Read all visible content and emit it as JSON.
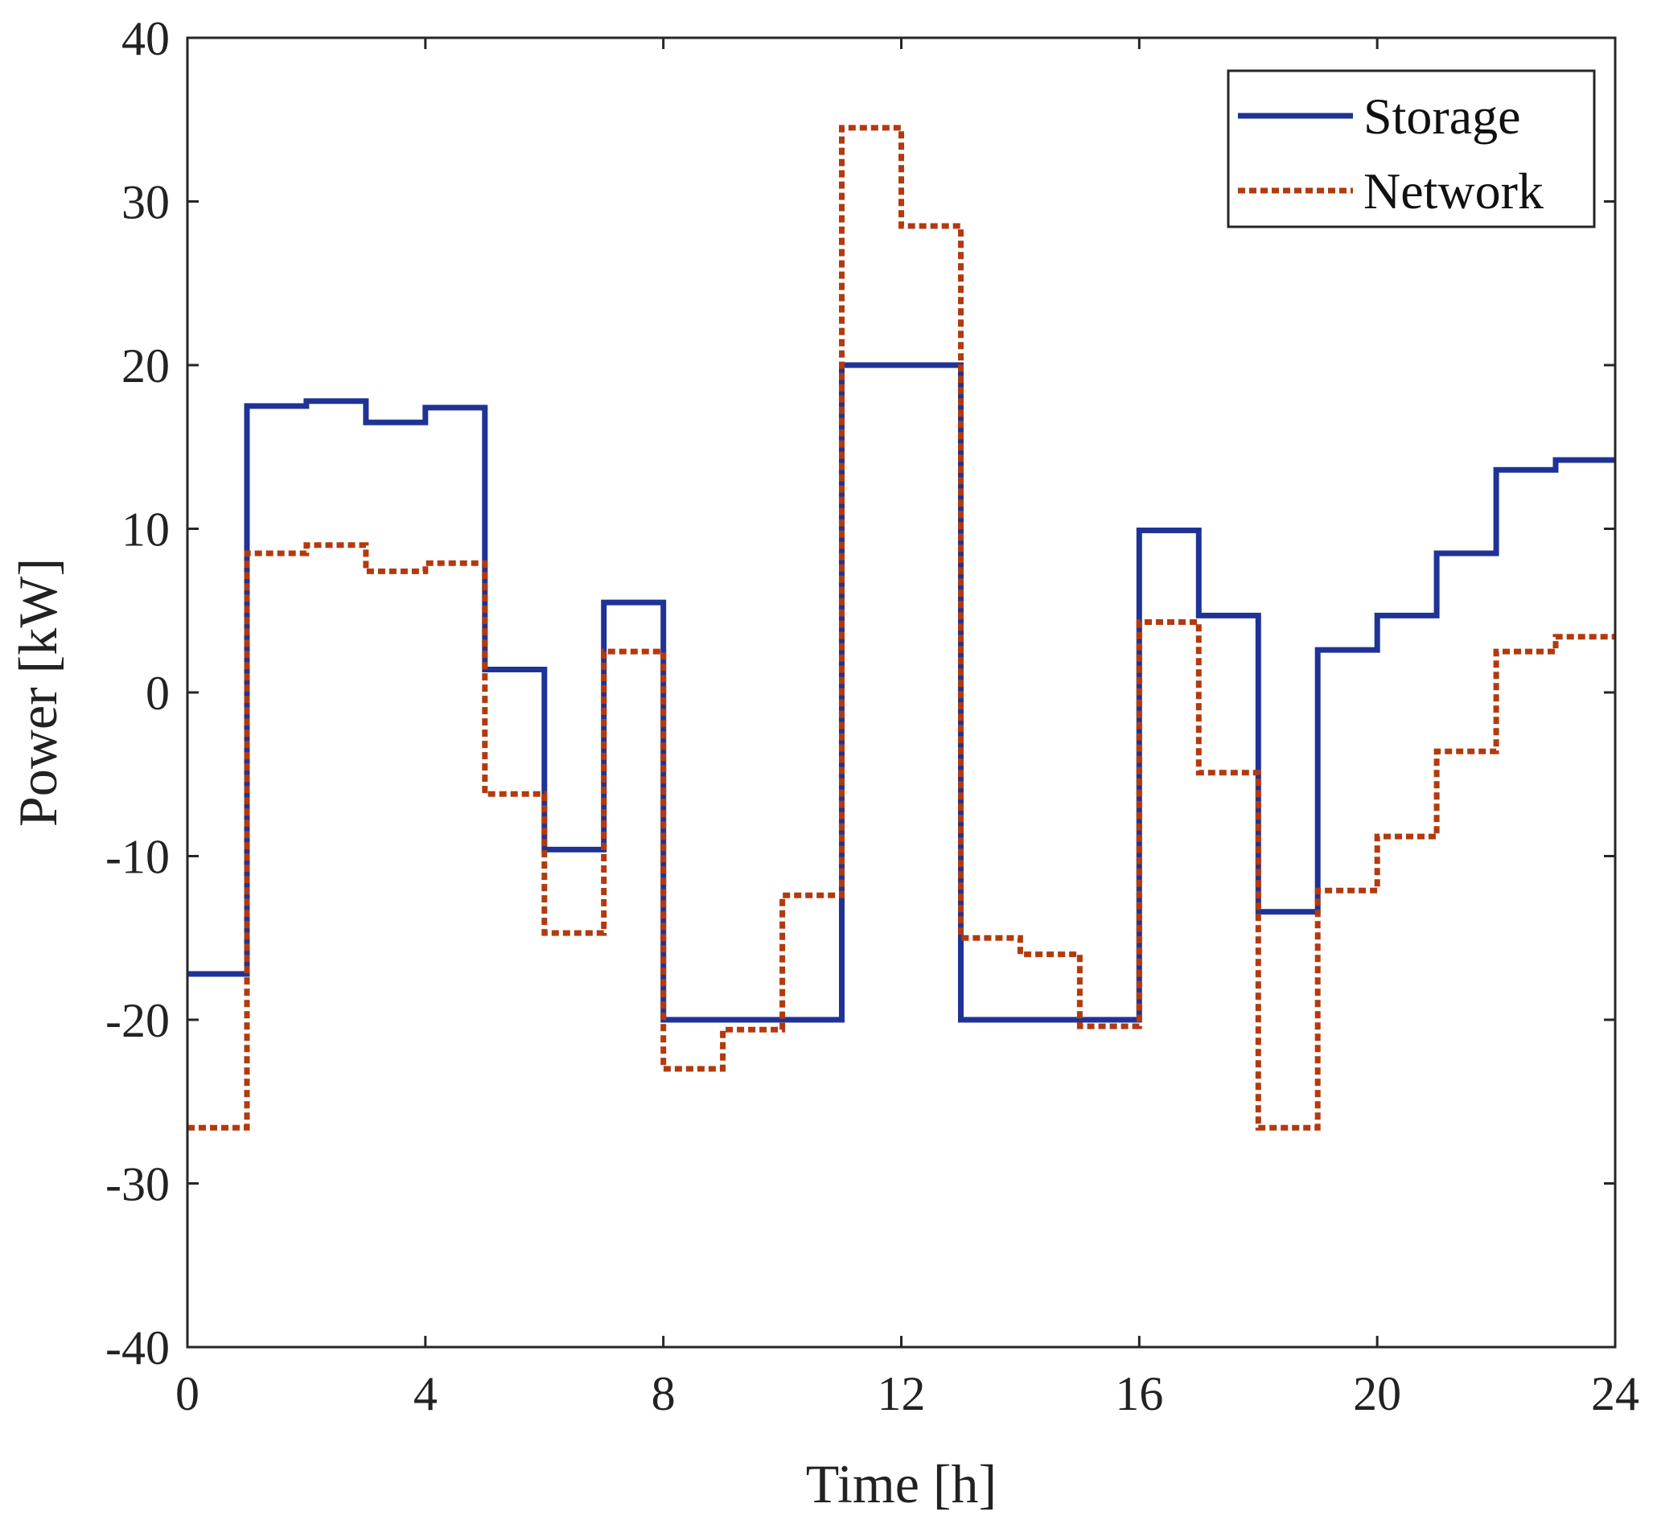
{
  "chart_data": {
    "type": "line",
    "step": true,
    "xlabel": "Time [h]",
    "ylabel": "Power [kW]",
    "xlim": [
      0,
      24
    ],
    "ylim": [
      -40,
      40
    ],
    "xticks": [
      0,
      4,
      8,
      12,
      16,
      20,
      24
    ],
    "yticks": [
      -40,
      -30,
      -20,
      -10,
      0,
      10,
      20,
      30,
      40
    ],
    "xtick_labels": [
      "0",
      "4",
      "8",
      "12",
      "16",
      "20",
      "24"
    ],
    "ytick_labels": [
      "-40",
      "-30",
      "-20",
      "-10",
      "0",
      "10",
      "20",
      "30",
      "40"
    ],
    "grid": false,
    "legend_position": "top-right",
    "series": [
      {
        "name": "Storage",
        "style": "solid",
        "color": "#1f3396",
        "values": [
          -17.2,
          17.5,
          17.8,
          16.5,
          17.4,
          1.4,
          -9.6,
          5.5,
          -20,
          -20,
          -20,
          20,
          20,
          -20,
          -20,
          -20,
          9.9,
          4.7,
          -13.4,
          2.6,
          4.7,
          8.5,
          13.6,
          14.2
        ]
      },
      {
        "name": "Network",
        "style": "dotted",
        "color": "#b23a0e",
        "values": [
          -26.6,
          8.5,
          9.0,
          7.4,
          7.9,
          -6.2,
          -14.7,
          2.5,
          -23.0,
          -20.6,
          -12.4,
          34.5,
          28.5,
          -15.0,
          -16.0,
          -20.4,
          4.3,
          -4.9,
          -26.6,
          -12.1,
          -8.8,
          -3.6,
          2.5,
          3.4
        ]
      }
    ]
  }
}
